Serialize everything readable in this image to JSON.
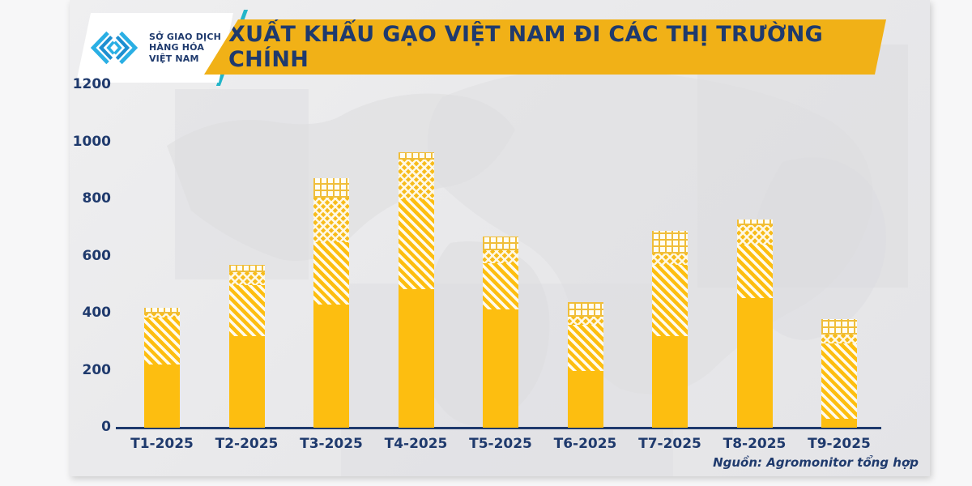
{
  "header": {
    "logo": {
      "line1": "SỞ GIAO DỊCH",
      "line2": "HÀNG HÓA",
      "line3": "VIỆT NAM"
    },
    "title": "XUẤT KHẨU GẠO VIỆT NAM ĐI CÁC THỊ TRƯỜNG CHÍNH"
  },
  "chart_data": {
    "type": "bar",
    "stacked": true,
    "title": "XUẤT KHẨU GẠO VIỆT NAM ĐI CÁC THỊ TRƯỜNG CHÍNH",
    "categories": [
      "T1-2025",
      "T2-2025",
      "T3-2025",
      "T4-2025",
      "T5-2025",
      "T6-2025",
      "T7-2025",
      "T8-2025",
      "T9-2025"
    ],
    "series": [
      {
        "name": "market-1-solid",
        "pattern": "solid",
        "values": [
          220,
          320,
          430,
          485,
          415,
          200,
          320,
          455,
          30
        ]
      },
      {
        "name": "market-2-diagonal-stripes",
        "pattern": "diagonal",
        "values": [
          165,
          180,
          220,
          315,
          160,
          160,
          250,
          185,
          265
        ]
      },
      {
        "name": "market-3-checkerboard",
        "pattern": "checker",
        "values": [
          15,
          45,
          155,
          140,
          45,
          30,
          40,
          70,
          30
        ]
      },
      {
        "name": "market-4-open-grid",
        "pattern": "grid",
        "values": [
          20,
          25,
          70,
          25,
          50,
          50,
          80,
          20,
          55
        ]
      }
    ],
    "totals": [
      420,
      570,
      875,
      965,
      670,
      440,
      690,
      730,
      380
    ],
    "xlabel": "",
    "ylabel": "",
    "ylim": [
      0,
      1200
    ],
    "yticks": [
      0,
      200,
      400,
      600,
      800,
      1000,
      1200
    ],
    "grid": false,
    "legend": "none"
  },
  "footer": {
    "source": "Nguồn: Agromonitor tổng hợp"
  },
  "colors": {
    "banner_gold": "#F1B117",
    "navy_text": "#1F3A6D",
    "bar_yellow": "#FDBE10",
    "teal_slash": "#23B5C9",
    "logo_cyan": "#2AAFE4",
    "panel_gray": "#E9E9EB"
  }
}
